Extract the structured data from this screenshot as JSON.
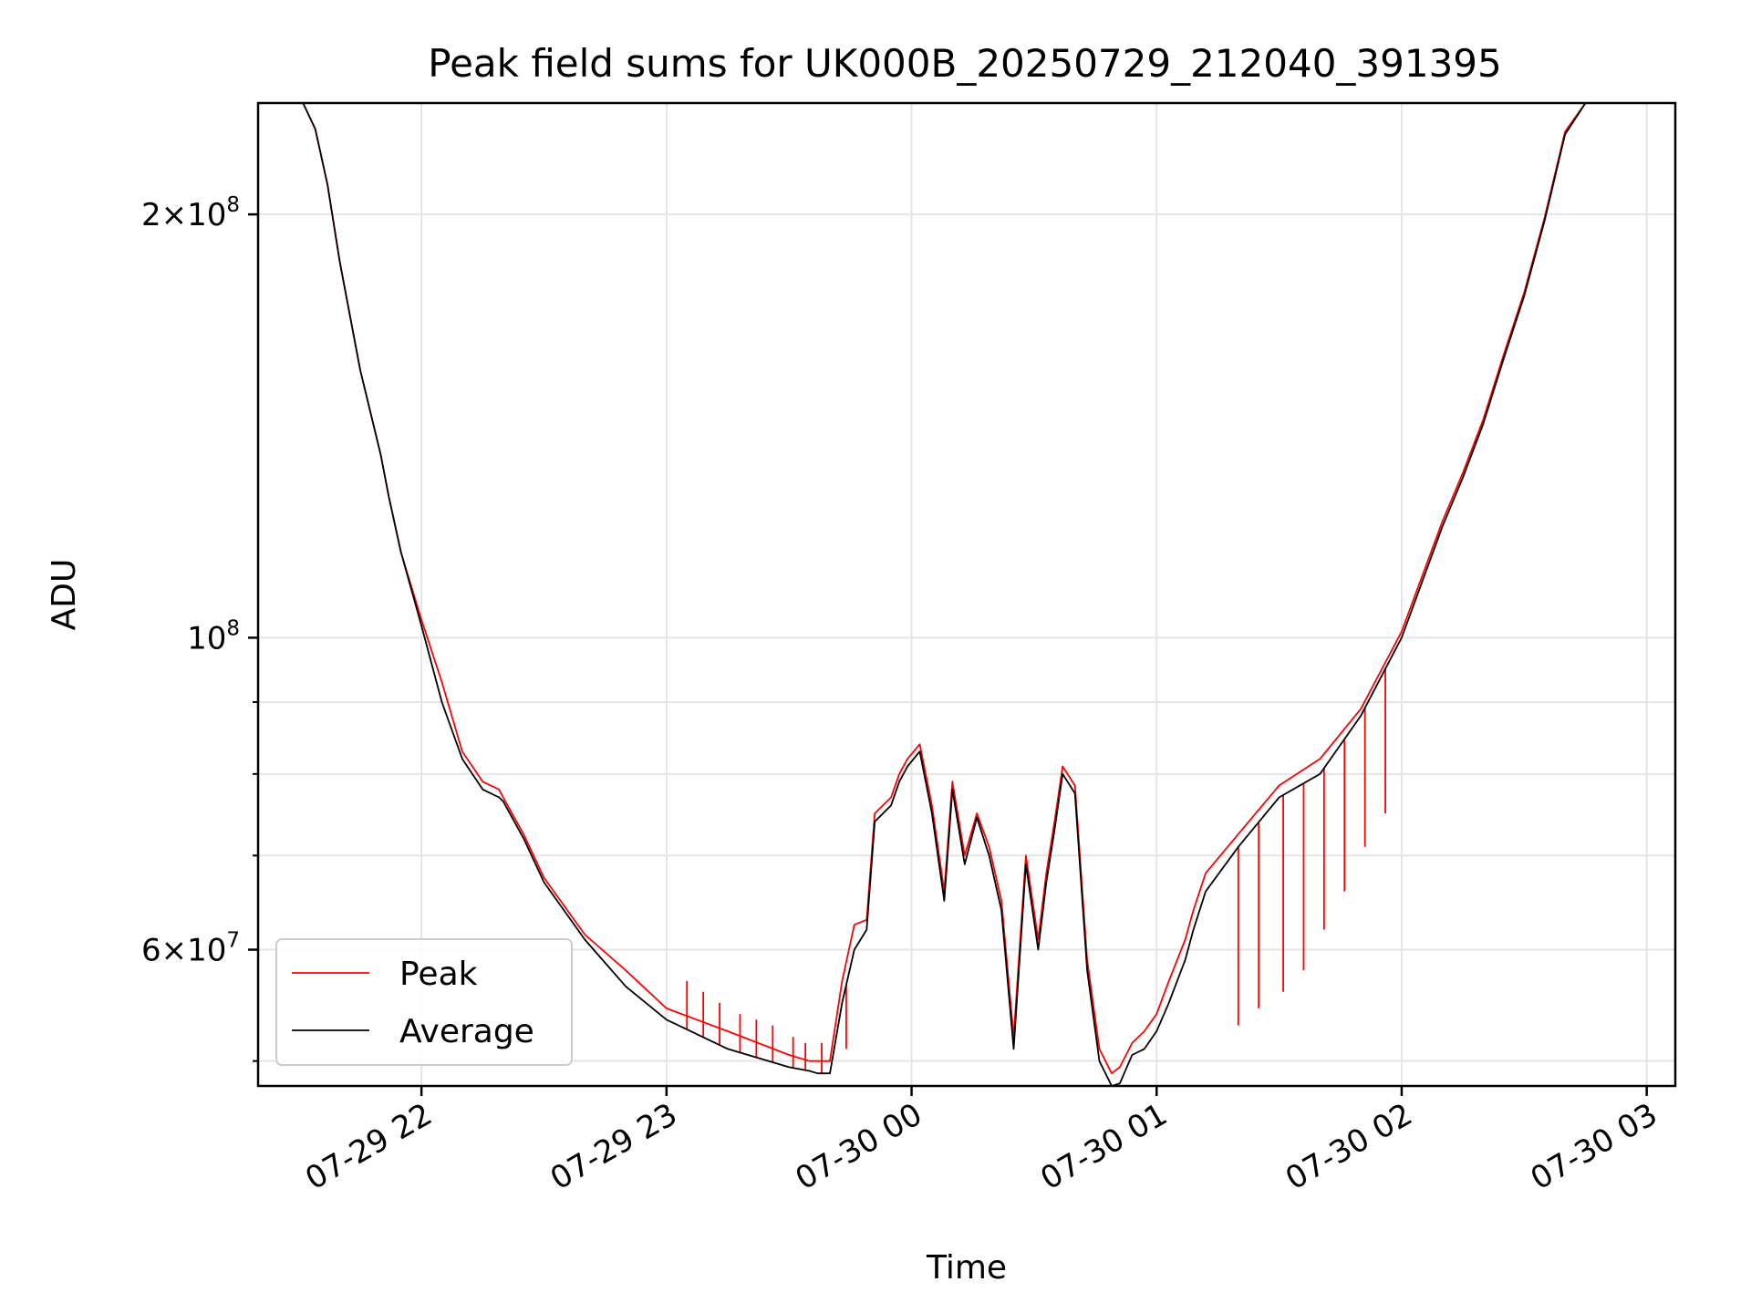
{
  "chart_data": {
    "type": "line",
    "title": "Peak field sums for UK000B_20250729_212040_391395",
    "xlabel": "Time",
    "ylabel": "ADU",
    "y_scale": "log",
    "grid": true,
    "legend_placement": "lower-left",
    "xlim": [
      "2025-07-29 21:20",
      "2025-07-30 03:07"
    ],
    "ylim": [
      48000000,
      240000000
    ],
    "x_ticks": [
      "2025-07-29 22:00",
      "2025-07-29 23:00",
      "2025-07-30 00:00",
      "2025-07-30 01:00",
      "2025-07-30 02:00",
      "2025-07-30 03:00"
    ],
    "x_tick_labels": [
      "07-29 22",
      "07-29 23",
      "07-30 00",
      "07-30 01",
      "07-30 02",
      "07-30 03"
    ],
    "y_major_ticks": [
      {
        "value": 200000000,
        "mantissa": "2",
        "exponent": "8"
      },
      {
        "value": 100000000,
        "mantissa": "",
        "exponent": "8"
      },
      {
        "value": 60000000,
        "mantissa": "6",
        "exponent": "7"
      }
    ],
    "y_minor_ticks": [
      50000000,
      70000000,
      80000000,
      90000000
    ],
    "colors": {
      "peak": "#ff0000",
      "average": "#000000",
      "grid": "#e5e5e5"
    },
    "series": [
      {
        "name": "Average",
        "color": "#000000",
        "x": [
          "2025-07-29 21:20",
          "2025-07-29 21:31",
          "2025-07-29 21:34",
          "2025-07-29 21:37",
          "2025-07-29 21:40",
          "2025-07-29 21:45",
          "2025-07-29 21:50",
          "2025-07-29 21:52",
          "2025-07-29 21:55",
          "2025-07-29 22:00",
          "2025-07-29 22:05",
          "2025-07-29 22:10",
          "2025-07-29 22:15",
          "2025-07-29 22:19",
          "2025-07-29 22:20",
          "2025-07-29 22:25",
          "2025-07-29 22:30",
          "2025-07-29 22:40",
          "2025-07-29 22:50",
          "2025-07-29 23:00",
          "2025-07-29 23:15",
          "2025-07-29 23:30",
          "2025-07-29 23:35",
          "2025-07-29 23:37",
          "2025-07-29 23:40",
          "2025-07-29 23:43",
          "2025-07-29 23:46",
          "2025-07-29 23:49",
          "2025-07-29 23:51",
          "2025-07-29 23:55",
          "2025-07-29 23:57",
          "2025-07-29 23:59",
          "2025-07-30 00:02",
          "2025-07-30 00:05",
          "2025-07-30 00:08",
          "2025-07-30 00:10",
          "2025-07-30 00:13",
          "2025-07-30 00:16",
          "2025-07-30 00:19",
          "2025-07-30 00:22",
          "2025-07-30 00:25",
          "2025-07-30 00:28",
          "2025-07-30 00:31",
          "2025-07-30 00:33",
          "2025-07-30 00:35",
          "2025-07-30 00:37",
          "2025-07-30 00:40",
          "2025-07-30 00:43",
          "2025-07-30 00:46",
          "2025-07-30 00:49",
          "2025-07-30 00:51",
          "2025-07-30 00:54",
          "2025-07-30 00:57",
          "2025-07-30 01:00",
          "2025-07-30 01:03",
          "2025-07-30 01:07",
          "2025-07-30 01:09",
          "2025-07-30 01:12",
          "2025-07-30 01:20",
          "2025-07-30 01:30",
          "2025-07-30 01:40",
          "2025-07-30 01:50",
          "2025-07-30 02:00",
          "2025-07-30 02:10",
          "2025-07-30 02:15",
          "2025-07-30 02:20",
          "2025-07-30 02:25",
          "2025-07-30 02:30",
          "2025-07-30 02:35",
          "2025-07-30 02:40",
          "2025-07-30 02:45",
          "2025-07-30 02:49",
          "2025-07-30 02:52",
          "2025-07-30 03:07"
        ],
        "values": [
          240000000,
          240000000,
          230000000,
          210000000,
          185000000,
          155000000,
          135000000,
          126000000,
          115000000,
          102000000,
          90000000,
          82000000,
          78000000,
          77000000,
          76500000,
          72000000,
          67000000,
          61000000,
          56500000,
          53500000,
          51000000,
          49500000,
          49200000,
          49000000,
          49000000,
          55000000,
          60000000,
          62000000,
          74000000,
          76000000,
          79000000,
          81000000,
          83000000,
          75000000,
          65000000,
          78000000,
          69000000,
          74500000,
          70000000,
          64000000,
          51000000,
          69000000,
          60000000,
          67000000,
          73000000,
          80000000,
          77500000,
          58000000,
          50000000,
          48000000,
          48200000,
          50500000,
          51000000,
          52500000,
          55000000,
          59000000,
          62000000,
          66000000,
          71000000,
          77000000,
          80000000,
          88000000,
          100000000,
          120000000,
          130000000,
          142000000,
          158000000,
          175000000,
          198000000,
          228000000,
          240000000,
          240000000,
          240000000,
          240000000
        ]
      },
      {
        "name": "Peak",
        "color": "#ff0000",
        "x": [
          "2025-07-29 21:20",
          "2025-07-29 21:31",
          "2025-07-29 21:34",
          "2025-07-29 21:37",
          "2025-07-29 21:40",
          "2025-07-29 21:45",
          "2025-07-29 21:50",
          "2025-07-29 21:52",
          "2025-07-29 21:55",
          "2025-07-29 22:00",
          "2025-07-29 22:05",
          "2025-07-29 22:10",
          "2025-07-29 22:15",
          "2025-07-29 22:19",
          "2025-07-29 22:20",
          "2025-07-29 22:25",
          "2025-07-29 22:30",
          "2025-07-29 22:40",
          "2025-07-29 22:50",
          "2025-07-29 23:00",
          "2025-07-29 23:15",
          "2025-07-29 23:30",
          "2025-07-29 23:35",
          "2025-07-29 23:37",
          "2025-07-29 23:40",
          "2025-07-29 23:43",
          "2025-07-29 23:46",
          "2025-07-29 23:49",
          "2025-07-29 23:51",
          "2025-07-29 23:55",
          "2025-07-29 23:57",
          "2025-07-29 23:59",
          "2025-07-30 00:02",
          "2025-07-30 00:05",
          "2025-07-30 00:08",
          "2025-07-30 00:10",
          "2025-07-30 00:13",
          "2025-07-30 00:16",
          "2025-07-30 00:19",
          "2025-07-30 00:22",
          "2025-07-30 00:25",
          "2025-07-30 00:28",
          "2025-07-30 00:31",
          "2025-07-30 00:33",
          "2025-07-30 00:35",
          "2025-07-30 00:37",
          "2025-07-30 00:40",
          "2025-07-30 00:43",
          "2025-07-30 00:46",
          "2025-07-30 00:49",
          "2025-07-30 00:51",
          "2025-07-30 00:54",
          "2025-07-30 00:57",
          "2025-07-30 01:00",
          "2025-07-30 01:03",
          "2025-07-30 01:07",
          "2025-07-30 01:09",
          "2025-07-30 01:12",
          "2025-07-30 01:20",
          "2025-07-30 01:30",
          "2025-07-30 01:40",
          "2025-07-30 01:50",
          "2025-07-30 02:00",
          "2025-07-30 02:10",
          "2025-07-30 02:15",
          "2025-07-30 02:20",
          "2025-07-30 02:25",
          "2025-07-30 02:30",
          "2025-07-30 02:35",
          "2025-07-30 02:40",
          "2025-07-30 02:45",
          "2025-07-30 02:49",
          "2025-07-30 02:52",
          "2025-07-30 03:07"
        ],
        "values": [
          240000000,
          240000000,
          230000000,
          210000000,
          185000000,
          155000000,
          135000000,
          126000000,
          115000000,
          103000000,
          93000000,
          83000000,
          79000000,
          78000000,
          77000000,
          72500000,
          67500000,
          61500000,
          58000000,
          54500000,
          52500000,
          50500000,
          50000000,
          50000000,
          50000000,
          57000000,
          62500000,
          63000000,
          75000000,
          77000000,
          80000000,
          82000000,
          84000000,
          76000000,
          66000000,
          79000000,
          70000000,
          75000000,
          71000000,
          65000000,
          52000000,
          70000000,
          61000000,
          68000000,
          74000000,
          81000000,
          78500000,
          59000000,
          51000000,
          49000000,
          49500000,
          51500000,
          52500000,
          54000000,
          57000000,
          61000000,
          64000000,
          68000000,
          72500000,
          78500000,
          82000000,
          89000000,
          101000000,
          121000000,
          131000000,
          143000000,
          159000000,
          176000000,
          199000000,
          229000000,
          240000000,
          240000000,
          240000000,
          240000000
        ],
        "spikes": [
          {
            "x": "2025-07-29 23:05",
            "y": 57000000
          },
          {
            "x": "2025-07-29 23:09",
            "y": 56000000
          },
          {
            "x": "2025-07-29 23:13",
            "y": 55000000
          },
          {
            "x": "2025-07-29 23:18",
            "y": 54000000
          },
          {
            "x": "2025-07-29 23:22",
            "y": 53500000
          },
          {
            "x": "2025-07-29 23:26",
            "y": 53000000
          },
          {
            "x": "2025-07-29 23:31",
            "y": 52000000
          },
          {
            "x": "2025-07-29 23:34",
            "y": 51500000
          },
          {
            "x": "2025-07-29 23:38",
            "y": 51500000
          },
          {
            "x": "2025-07-29 23:44",
            "y": 51000000
          },
          {
            "x": "2025-07-30 01:20",
            "y": 53000000
          },
          {
            "x": "2025-07-30 01:25",
            "y": 54500000
          },
          {
            "x": "2025-07-30 01:31",
            "y": 56000000
          },
          {
            "x": "2025-07-30 01:36",
            "y": 58000000
          },
          {
            "x": "2025-07-30 01:41",
            "y": 62000000
          },
          {
            "x": "2025-07-30 01:46",
            "y": 66000000
          },
          {
            "x": "2025-07-30 01:51",
            "y": 71000000
          },
          {
            "x": "2025-07-30 01:56",
            "y": 75000000
          }
        ]
      }
    ]
  }
}
